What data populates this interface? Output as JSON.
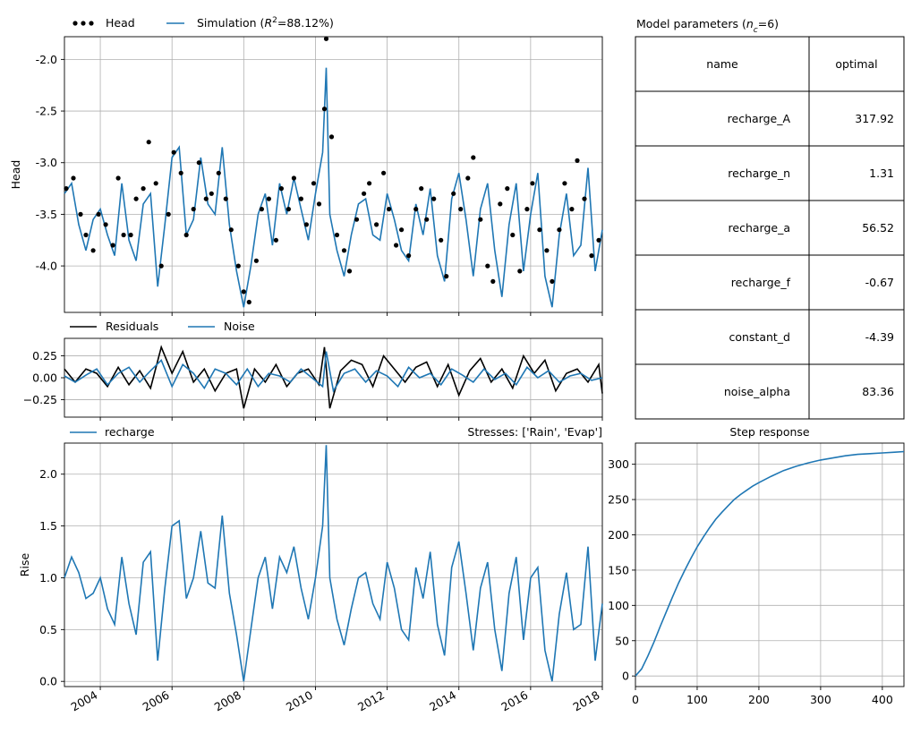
{
  "colors": {
    "simulation": "#1f77b4",
    "observations": "#000000",
    "residuals": "#000000",
    "noise": "#1f77b4",
    "grid": "#b0b0b0"
  },
  "chart_data": [
    {
      "id": "head",
      "type": "line",
      "ylabel": "Head",
      "ylim": [
        -4.45,
        -1.78
      ],
      "yticks": [
        "-2.0",
        "-2.5",
        "-3.0",
        "-3.5",
        "-4.0"
      ],
      "xlim": [
        2003.0,
        2018.0
      ],
      "grid": true,
      "legend_position": "top-left",
      "legend": {
        "observations": "Head",
        "simulation_prefix": "Simulation (",
        "simulation_r": "R",
        "simulation_sup": "2",
        "simulation_suffix": "=88.12%)"
      },
      "series": [
        {
          "name": "Simulation",
          "style": "line",
          "x": [
            2003.0,
            2003.2,
            2003.4,
            2003.6,
            2003.8,
            2004.0,
            2004.2,
            2004.4,
            2004.6,
            2004.8,
            2005.0,
            2005.2,
            2005.4,
            2005.6,
            2005.8,
            2006.0,
            2006.2,
            2006.4,
            2006.6,
            2006.8,
            2007.0,
            2007.2,
            2007.4,
            2007.6,
            2007.8,
            2008.0,
            2008.2,
            2008.4,
            2008.6,
            2008.8,
            2009.0,
            2009.2,
            2009.4,
            2009.6,
            2009.8,
            2010.0,
            2010.2,
            2010.3,
            2010.4,
            2010.6,
            2010.8,
            2011.0,
            2011.2,
            2011.4,
            2011.6,
            2011.8,
            2012.0,
            2012.2,
            2012.4,
            2012.6,
            2012.8,
            2013.0,
            2013.2,
            2013.4,
            2013.6,
            2013.8,
            2014.0,
            2014.2,
            2014.4,
            2014.6,
            2014.8,
            2015.0,
            2015.2,
            2015.4,
            2015.6,
            2015.8,
            2016.0,
            2016.2,
            2016.4,
            2016.6,
            2016.8,
            2017.0,
            2017.2,
            2017.4,
            2017.6,
            2017.8,
            2018.0
          ],
          "y": [
            -3.3,
            -3.2,
            -3.6,
            -3.85,
            -3.55,
            -3.45,
            -3.7,
            -3.9,
            -3.2,
            -3.75,
            -3.95,
            -3.4,
            -3.3,
            -4.2,
            -3.6,
            -2.95,
            -2.85,
            -3.7,
            -3.55,
            -2.95,
            -3.4,
            -3.5,
            -2.85,
            -3.6,
            -4.05,
            -4.4,
            -4.0,
            -3.5,
            -3.3,
            -3.8,
            -3.2,
            -3.5,
            -3.15,
            -3.45,
            -3.75,
            -3.3,
            -2.9,
            -2.08,
            -3.5,
            -3.85,
            -4.1,
            -3.7,
            -3.4,
            -3.35,
            -3.7,
            -3.75,
            -3.3,
            -3.55,
            -3.85,
            -3.95,
            -3.4,
            -3.7,
            -3.25,
            -3.9,
            -4.15,
            -3.35,
            -3.1,
            -3.55,
            -4.1,
            -3.45,
            -3.2,
            -3.85,
            -4.3,
            -3.6,
            -3.2,
            -4.05,
            -3.5,
            -3.1,
            -4.1,
            -4.4,
            -3.7,
            -3.3,
            -3.9,
            -3.8,
            -3.05,
            -4.05,
            -3.65
          ]
        },
        {
          "name": "Head",
          "style": "points",
          "x": [
            2003.05,
            2003.25,
            2003.45,
            2003.6,
            2003.8,
            2003.95,
            2004.15,
            2004.35,
            2004.5,
            2004.65,
            2004.85,
            2005.0,
            2005.2,
            2005.35,
            2005.55,
            2005.7,
            2005.9,
            2006.05,
            2006.25,
            2006.4,
            2006.6,
            2006.75,
            2006.95,
            2007.1,
            2007.3,
            2007.5,
            2007.65,
            2007.85,
            2008.0,
            2008.15,
            2008.35,
            2008.5,
            2008.7,
            2008.9,
            2009.05,
            2009.25,
            2009.4,
            2009.6,
            2009.75,
            2009.95,
            2010.1,
            2010.25,
            2010.3,
            2010.45,
            2010.6,
            2010.8,
            2010.95,
            2011.15,
            2011.35,
            2011.5,
            2011.7,
            2011.9,
            2012.05,
            2012.25,
            2012.4,
            2012.6,
            2012.8,
            2012.95,
            2013.1,
            2013.3,
            2013.5,
            2013.65,
            2013.85,
            2014.05,
            2014.25,
            2014.4,
            2014.6,
            2014.8,
            2014.95,
            2015.15,
            2015.35,
            2015.5,
            2015.7,
            2015.9,
            2016.05,
            2016.25,
            2016.45,
            2016.6,
            2016.8,
            2016.95,
            2017.15,
            2017.3,
            2017.5,
            2017.7,
            2017.9
          ],
          "y": [
            -3.25,
            -3.15,
            -3.5,
            -3.7,
            -3.85,
            -3.5,
            -3.6,
            -3.8,
            -3.15,
            -3.7,
            -3.7,
            -3.35,
            -3.25,
            -2.8,
            -3.2,
            -4.0,
            -3.5,
            -2.9,
            -3.1,
            -3.7,
            -3.45,
            -3.0,
            -3.35,
            -3.3,
            -3.1,
            -3.35,
            -3.65,
            -4.0,
            -4.25,
            -4.35,
            -3.95,
            -3.45,
            -3.35,
            -3.75,
            -3.25,
            -3.45,
            -3.15,
            -3.35,
            -3.6,
            -3.2,
            -3.4,
            -2.48,
            -1.8,
            -2.75,
            -3.7,
            -3.85,
            -4.05,
            -3.55,
            -3.3,
            -3.2,
            -3.6,
            -3.1,
            -3.45,
            -3.8,
            -3.65,
            -3.9,
            -3.45,
            -3.25,
            -3.55,
            -3.35,
            -3.75,
            -4.1,
            -3.3,
            -3.45,
            -3.15,
            -2.95,
            -3.55,
            -4.0,
            -4.15,
            -3.4,
            -3.25,
            -3.7,
            -4.05,
            -3.45,
            -3.2,
            -3.65,
            -3.85,
            -4.15,
            -3.65,
            -3.2,
            -3.45,
            -2.98,
            -3.35,
            -3.9,
            -3.75
          ]
        }
      ]
    },
    {
      "id": "residuals",
      "type": "line",
      "ylim": [
        -0.45,
        0.45
      ],
      "yticks": [
        "0.25",
        "0.00",
        "−0.25"
      ],
      "xlim": [
        2003.0,
        2018.0
      ],
      "grid": true,
      "legend_position": "top-left",
      "legend": {
        "residuals": "Residuals",
        "noise": "Noise"
      },
      "series": [
        {
          "name": "Residuals",
          "x": [
            2003.0,
            2003.3,
            2003.6,
            2003.9,
            2004.2,
            2004.5,
            2004.8,
            2005.1,
            2005.4,
            2005.7,
            2006.0,
            2006.3,
            2006.6,
            2006.9,
            2007.2,
            2007.5,
            2007.8,
            2008.0,
            2008.3,
            2008.6,
            2008.9,
            2009.2,
            2009.5,
            2009.8,
            2010.1,
            2010.25,
            2010.4,
            2010.7,
            2011.0,
            2011.3,
            2011.6,
            2011.9,
            2012.2,
            2012.5,
            2012.8,
            2013.1,
            2013.4,
            2013.7,
            2014.0,
            2014.3,
            2014.6,
            2014.9,
            2015.2,
            2015.5,
            2015.8,
            2016.1,
            2016.4,
            2016.7,
            2017.0,
            2017.3,
            2017.6,
            2017.9,
            2018.0
          ],
          "y": [
            0.1,
            -0.05,
            0.1,
            0.05,
            -0.1,
            0.12,
            -0.08,
            0.08,
            -0.12,
            0.35,
            0.05,
            0.3,
            -0.05,
            0.1,
            -0.15,
            0.05,
            0.1,
            -0.35,
            0.1,
            -0.05,
            0.15,
            -0.1,
            0.05,
            0.1,
            -0.08,
            0.35,
            -0.35,
            0.08,
            0.2,
            0.15,
            -0.1,
            0.25,
            0.1,
            -0.05,
            0.12,
            0.18,
            -0.1,
            0.15,
            -0.2,
            0.08,
            0.22,
            -0.05,
            0.1,
            -0.12,
            0.25,
            0.05,
            0.2,
            -0.15,
            0.05,
            0.1,
            -0.05,
            0.15,
            -0.18
          ]
        },
        {
          "name": "Noise",
          "x": [
            2003.0,
            2003.3,
            2003.6,
            2003.9,
            2004.2,
            2004.5,
            2004.8,
            2005.1,
            2005.4,
            2005.7,
            2006.0,
            2006.3,
            2006.6,
            2006.9,
            2007.2,
            2007.5,
            2007.8,
            2008.1,
            2008.4,
            2008.7,
            2009.0,
            2009.3,
            2009.6,
            2009.9,
            2010.2,
            2010.3,
            2010.5,
            2010.8,
            2011.1,
            2011.4,
            2011.7,
            2012.0,
            2012.3,
            2012.6,
            2012.9,
            2013.2,
            2013.5,
            2013.8,
            2014.1,
            2014.4,
            2014.7,
            2015.0,
            2015.3,
            2015.6,
            2015.9,
            2016.2,
            2016.5,
            2016.8,
            2017.1,
            2017.4,
            2017.7,
            2018.0
          ],
          "y": [
            0.02,
            -0.05,
            0.03,
            0.1,
            -0.08,
            0.05,
            0.12,
            -0.05,
            0.08,
            0.2,
            -0.1,
            0.15,
            0.05,
            -0.12,
            0.1,
            0.05,
            -0.08,
            0.1,
            -0.1,
            0.05,
            0.02,
            -0.05,
            0.1,
            0.0,
            -0.1,
            0.3,
            -0.15,
            0.05,
            0.1,
            -0.05,
            0.08,
            0.02,
            -0.1,
            0.12,
            0.0,
            0.05,
            -0.08,
            0.1,
            0.03,
            -0.05,
            0.1,
            -0.02,
            0.05,
            -0.08,
            0.12,
            0.0,
            0.08,
            -0.05,
            0.02,
            0.05,
            -0.03,
            0.0
          ]
        }
      ]
    },
    {
      "id": "recharge",
      "type": "line",
      "ylabel": "Rise",
      "ylim": [
        -0.05,
        2.3
      ],
      "yticks": [
        "2.0",
        "1.5",
        "1.0",
        "0.5",
        "0.0"
      ],
      "xlim": [
        2003.0,
        2018.0
      ],
      "xticks": [
        "2004",
        "2006",
        "2008",
        "2010",
        "2012",
        "2014",
        "2016",
        "2018"
      ],
      "grid": true,
      "legend_position": "top-left",
      "legend": {
        "recharge": "recharge"
      },
      "stresses_text": "Stresses: ['Rain', 'Evap']",
      "series": [
        {
          "name": "recharge",
          "x": [
            2003.0,
            2003.2,
            2003.4,
            2003.6,
            2003.8,
            2004.0,
            2004.2,
            2004.4,
            2004.6,
            2004.8,
            2005.0,
            2005.2,
            2005.4,
            2005.6,
            2005.8,
            2006.0,
            2006.2,
            2006.4,
            2006.6,
            2006.8,
            2007.0,
            2007.2,
            2007.4,
            2007.6,
            2007.8,
            2008.0,
            2008.2,
            2008.4,
            2008.6,
            2008.8,
            2009.0,
            2009.2,
            2009.4,
            2009.6,
            2009.8,
            2010.0,
            2010.2,
            2010.3,
            2010.4,
            2010.6,
            2010.8,
            2011.0,
            2011.2,
            2011.4,
            2011.6,
            2011.8,
            2012.0,
            2012.2,
            2012.4,
            2012.6,
            2012.8,
            2013.0,
            2013.2,
            2013.4,
            2013.6,
            2013.8,
            2014.0,
            2014.2,
            2014.4,
            2014.6,
            2014.8,
            2015.0,
            2015.2,
            2015.4,
            2015.6,
            2015.8,
            2016.0,
            2016.2,
            2016.4,
            2016.6,
            2016.8,
            2017.0,
            2017.2,
            2017.4,
            2017.6,
            2017.8,
            2018.0
          ],
          "y": [
            1.0,
            1.2,
            1.05,
            0.8,
            0.85,
            1.0,
            0.7,
            0.55,
            1.2,
            0.75,
            0.45,
            1.15,
            1.25,
            0.2,
            0.9,
            1.5,
            1.55,
            0.8,
            1.0,
            1.45,
            0.95,
            0.9,
            1.6,
            0.85,
            0.45,
            0.0,
            0.5,
            1.0,
            1.2,
            0.7,
            1.2,
            1.05,
            1.3,
            0.9,
            0.6,
            1.0,
            1.5,
            2.28,
            1.0,
            0.6,
            0.35,
            0.7,
            1.0,
            1.05,
            0.75,
            0.6,
            1.15,
            0.9,
            0.5,
            0.4,
            1.1,
            0.8,
            1.25,
            0.55,
            0.25,
            1.1,
            1.35,
            0.85,
            0.3,
            0.9,
            1.15,
            0.5,
            0.1,
            0.85,
            1.2,
            0.4,
            1.0,
            1.1,
            0.3,
            0.0,
            0.65,
            1.05,
            0.5,
            0.55,
            1.3,
            0.2,
            0.75
          ]
        }
      ]
    },
    {
      "id": "step",
      "type": "line",
      "title": "Step response",
      "xlim": [
        0,
        435
      ],
      "ylim": [
        -15,
        330
      ],
      "xticks": [
        "0",
        "100",
        "200",
        "300",
        "400"
      ],
      "yticks": [
        "300",
        "250",
        "200",
        "150",
        "100",
        "50",
        "0"
      ],
      "grid": true,
      "series": [
        {
          "name": "step",
          "x": [
            0,
            10,
            20,
            30,
            40,
            50,
            60,
            70,
            80,
            90,
            100,
            110,
            120,
            130,
            140,
            150,
            160,
            170,
            180,
            190,
            200,
            220,
            240,
            260,
            280,
            300,
            320,
            340,
            360,
            380,
            400,
            420,
            435
          ],
          "y": [
            0,
            10,
            28,
            48,
            70,
            91,
            112,
            132,
            150,
            167,
            183,
            197,
            210,
            222,
            232,
            241,
            250,
            257,
            263,
            269,
            274,
            283,
            291,
            297,
            302,
            306,
            309,
            312,
            314,
            315,
            316,
            317,
            317.9
          ]
        }
      ]
    }
  ],
  "table": {
    "title_prefix": "Model parameters (",
    "title_n": "n",
    "title_sub": "c",
    "title_suffix": "=6)",
    "headers": [
      "name",
      "optimal"
    ],
    "rows": [
      [
        "recharge_A",
        "317.92"
      ],
      [
        "recharge_n",
        "1.31"
      ],
      [
        "recharge_a",
        "56.52"
      ],
      [
        "recharge_f",
        "-0.67"
      ],
      [
        "constant_d",
        "-4.39"
      ],
      [
        "noise_alpha",
        "83.36"
      ]
    ]
  }
}
